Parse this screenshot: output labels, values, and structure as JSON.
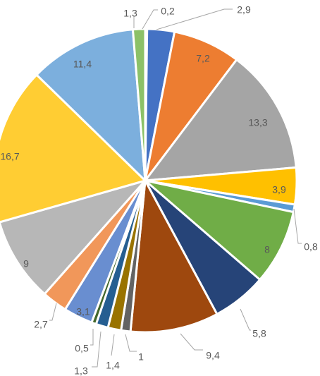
{
  "chart_data": {
    "type": "pie",
    "title": "",
    "slices": [
      {
        "label": "0,2",
        "value": 0.2,
        "color": "#ffffff"
      },
      {
        "label": "2,9",
        "value": 2.9,
        "color": "#4472c4"
      },
      {
        "label": "7,2",
        "value": 7.2,
        "color": "#ed7d31"
      },
      {
        "label": "13,3",
        "value": 13.3,
        "color": "#a5a5a5"
      },
      {
        "label": "3,9",
        "value": 3.9,
        "color": "#ffc000"
      },
      {
        "label": "0,8",
        "value": 0.8,
        "color": "#5b9bd5"
      },
      {
        "label": "8",
        "value": 8,
        "color": "#70ad47"
      },
      {
        "label": "5,8",
        "value": 5.8,
        "color": "#264478"
      },
      {
        "label": "9,4",
        "value": 9.4,
        "color": "#9e480e"
      },
      {
        "label": "1",
        "value": 1,
        "color": "#636363"
      },
      {
        "label": "1,4",
        "value": 1.4,
        "color": "#997300"
      },
      {
        "label": "1,3",
        "value": 1.3,
        "color": "#255e91"
      },
      {
        "label": "0,5",
        "value": 0.5,
        "color": "#43682b"
      },
      {
        "label": "3,1",
        "value": 3.1,
        "color": "#698ed0"
      },
      {
        "label": "2,7",
        "value": 2.7,
        "color": "#f1975a"
      },
      {
        "label": "9",
        "value": 9,
        "color": "#b7b7b7"
      },
      {
        "label": "16,7",
        "value": 16.7,
        "color": "#ffcd33"
      },
      {
        "label": "11,4",
        "value": 11.4,
        "color": "#7cafdd"
      },
      {
        "label": "1,3",
        "value": 1.3,
        "color": "#8cc168"
      }
    ]
  }
}
